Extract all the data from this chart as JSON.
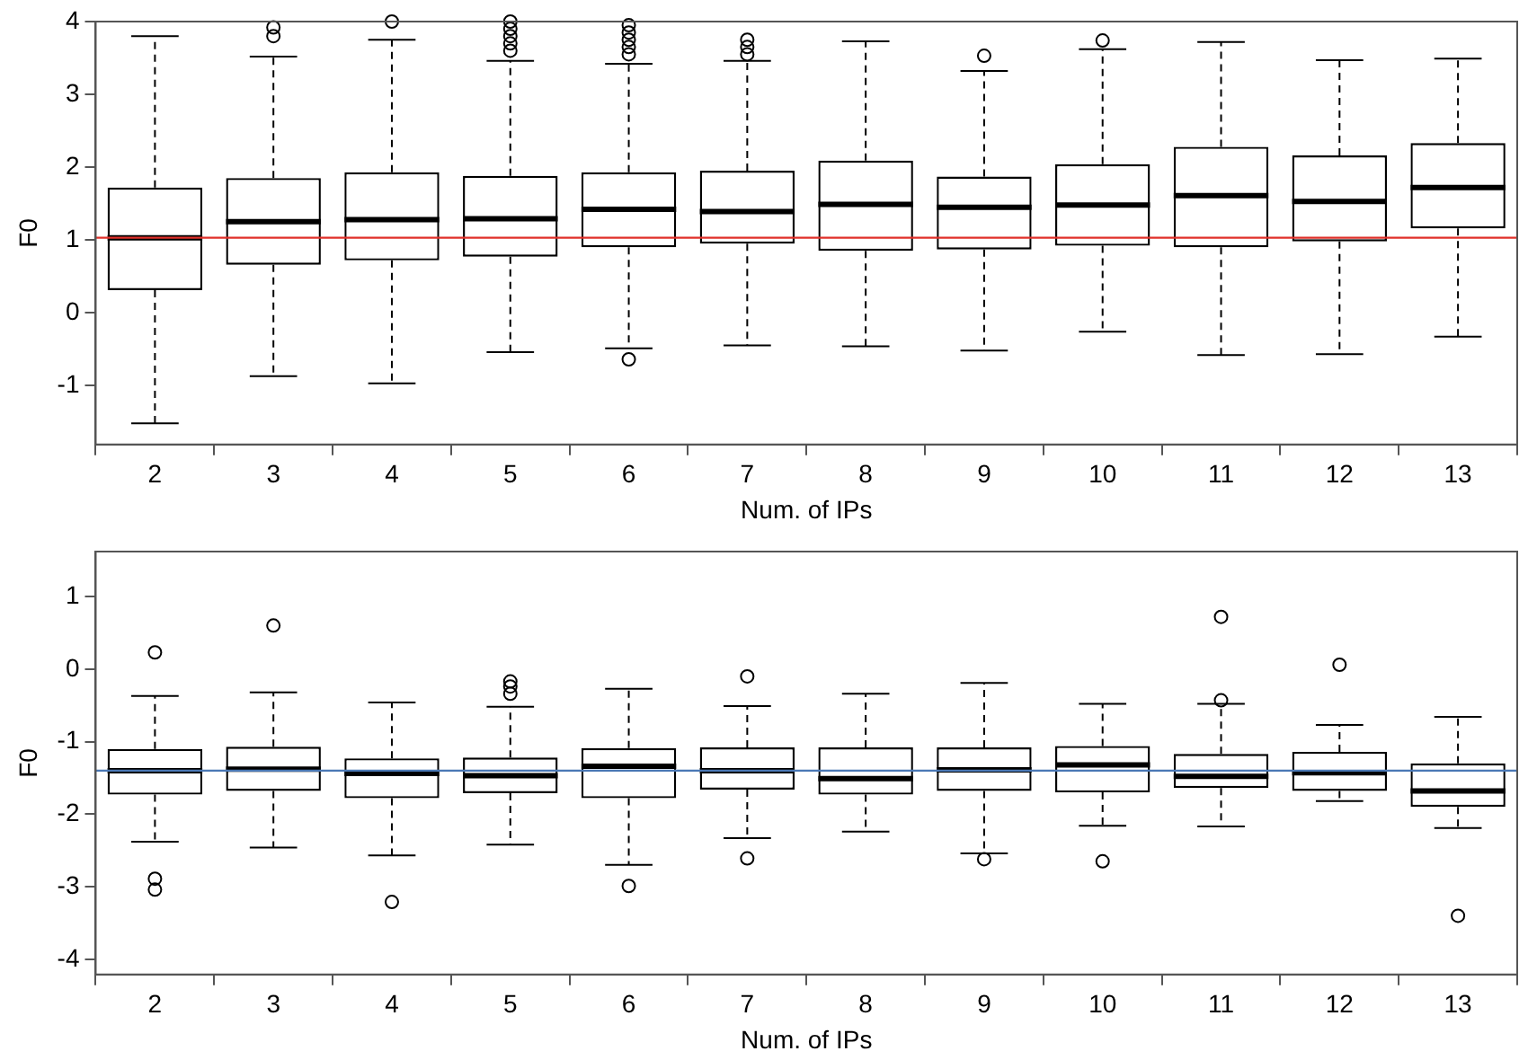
{
  "chart_data": [
    {
      "type": "box",
      "xlabel": "Num. of IPs",
      "ylabel": "F0",
      "categories": [
        "2",
        "3",
        "4",
        "5",
        "6",
        "7",
        "8",
        "9",
        "10",
        "11",
        "12",
        "13"
      ],
      "boxes": [
        {
          "low": -1.52,
          "q1": 0.31,
          "median": 1.03,
          "q3": 1.72,
          "high": 3.8
        },
        {
          "low": -0.87,
          "q1": 0.66,
          "median": 1.25,
          "q3": 1.85,
          "high": 3.52,
          "outliers": [
            3.8,
            3.92
          ]
        },
        {
          "low": -0.97,
          "q1": 0.72,
          "median": 1.28,
          "q3": 1.93,
          "high": 3.75,
          "outliers": [
            4.0
          ]
        },
        {
          "low": -0.54,
          "q1": 0.77,
          "median": 1.29,
          "q3": 1.88,
          "high": 3.46,
          "outliers": [
            3.6,
            3.7,
            3.8,
            3.9,
            4.0
          ]
        },
        {
          "low": -0.49,
          "q1": 0.9,
          "median": 1.42,
          "q3": 1.93,
          "high": 3.42,
          "outliers": [
            -0.64,
            3.55,
            3.65,
            3.75,
            3.85,
            3.95
          ]
        },
        {
          "low": -0.45,
          "q1": 0.95,
          "median": 1.39,
          "q3": 1.95,
          "high": 3.46,
          "outliers": [
            3.55,
            3.65,
            3.75
          ]
        },
        {
          "low": -0.46,
          "q1": 0.85,
          "median": 1.49,
          "q3": 2.09,
          "high": 3.73
        },
        {
          "low": -0.52,
          "q1": 0.87,
          "median": 1.45,
          "q3": 1.87,
          "high": 3.32,
          "outliers": [
            3.53
          ]
        },
        {
          "low": -0.26,
          "q1": 0.92,
          "median": 1.48,
          "q3": 2.04,
          "high": 3.62,
          "outliers": [
            3.74
          ]
        },
        {
          "low": -0.58,
          "q1": 0.9,
          "median": 1.61,
          "q3": 2.28,
          "high": 3.72
        },
        {
          "low": -0.57,
          "q1": 0.98,
          "median": 1.53,
          "q3": 2.16,
          "high": 3.47
        },
        {
          "low": -0.33,
          "q1": 1.16,
          "median": 1.72,
          "q3": 2.33,
          "high": 3.49
        }
      ],
      "ylim": [
        -1.81,
        4
      ],
      "yticks": [
        -1,
        0,
        1,
        2,
        3,
        4
      ],
      "grid": false,
      "ref_lines": [
        {
          "axis": "y",
          "value": 1.03,
          "color": "#e0302a"
        }
      ]
    },
    {
      "type": "box",
      "xlabel": "Num. of IPs",
      "ylabel": "F0",
      "categories": [
        "2",
        "3",
        "4",
        "5",
        "6",
        "7",
        "8",
        "9",
        "10",
        "11",
        "12",
        "13"
      ],
      "boxes": [
        {
          "low": -2.38,
          "q1": -1.73,
          "median": -1.4,
          "q3": -1.1,
          "high": -0.37,
          "outliers": [
            0.23,
            -2.89,
            -3.04
          ]
        },
        {
          "low": -2.46,
          "q1": -1.68,
          "median": -1.38,
          "q3": -1.07,
          "high": -0.32,
          "outliers": [
            0.6
          ]
        },
        {
          "low": -2.57,
          "q1": -1.78,
          "median": -1.44,
          "q3": -1.23,
          "high": -0.46,
          "outliers": [
            -3.21
          ]
        },
        {
          "low": -2.42,
          "q1": -1.71,
          "median": -1.47,
          "q3": -1.22,
          "high": -0.52,
          "outliers": [
            -0.17,
            -0.24,
            -0.34
          ]
        },
        {
          "low": -2.7,
          "q1": -1.78,
          "median": -1.34,
          "q3": -1.09,
          "high": -0.27,
          "outliers": [
            -2.99
          ]
        },
        {
          "low": -2.33,
          "q1": -1.66,
          "median": -1.4,
          "q3": -1.08,
          "high": -0.51,
          "outliers": [
            -0.1,
            -2.61
          ]
        },
        {
          "low": -2.24,
          "q1": -1.73,
          "median": -1.51,
          "q3": -1.08,
          "high": -0.34
        },
        {
          "low": -2.54,
          "q1": -1.68,
          "median": -1.39,
          "q3": -1.08,
          "high": -0.19,
          "outliers": [
            -2.62
          ]
        },
        {
          "low": -2.16,
          "q1": -1.7,
          "median": -1.32,
          "q3": -1.06,
          "high": -0.48,
          "outliers": [
            -2.65
          ]
        },
        {
          "low": -2.17,
          "q1": -1.64,
          "median": -1.48,
          "q3": -1.17,
          "high": -0.48,
          "outliers": [
            0.72,
            -0.43
          ]
        },
        {
          "low": -1.82,
          "q1": -1.68,
          "median": -1.43,
          "q3": -1.14,
          "high": -0.77,
          "outliers": [
            0.06
          ]
        },
        {
          "low": -2.19,
          "q1": -1.9,
          "median": -1.68,
          "q3": -1.3,
          "high": -0.66,
          "outliers": [
            -3.4
          ]
        }
      ],
      "ylim": [
        -4.21,
        1.62
      ],
      "yticks": [
        -4,
        -3,
        -2,
        -1,
        0,
        1
      ],
      "grid": false,
      "ref_lines": [
        {
          "axis": "y",
          "value": -1.4,
          "color": "#4a78b5"
        }
      ]
    }
  ]
}
